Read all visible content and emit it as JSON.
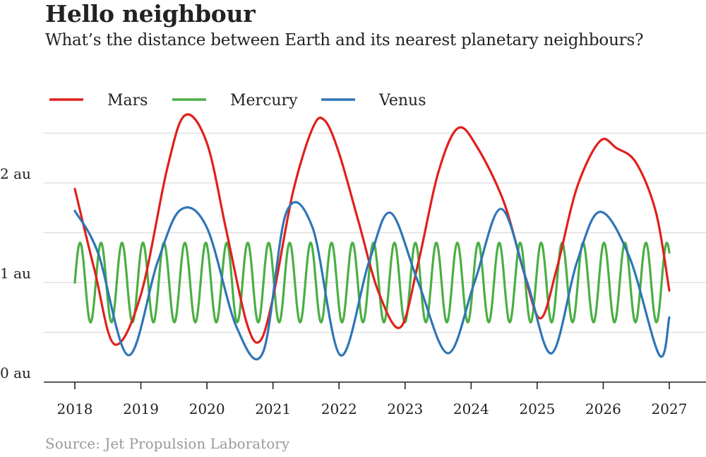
{
  "title": "Hello neighbour",
  "subtitle": "What’s the distance between Earth and its nearest planetary neighbours?",
  "source": "Source: Jet Propulsion Laboratory",
  "chart_data": {
    "type": "line",
    "title": "Hello neighbour",
    "subtitle": "What’s the distance between Earth and its nearest planetary neighbours?",
    "xlabel": "",
    "ylabel": "au",
    "xlim": [
      2017.6,
      2027.3
    ],
    "ylim": [
      0,
      2.6
    ],
    "grid": true,
    "legend_position": "top-left",
    "x_ticks": [
      2018,
      2019,
      2020,
      2021,
      2022,
      2023,
      2024,
      2025,
      2026,
      2027
    ],
    "x_tick_labels": [
      "2018",
      "2019",
      "2020",
      "2021",
      "2022",
      "2023",
      "2024",
      "2025",
      "2026",
      "2027"
    ],
    "y_ticks": [
      0,
      1,
      2
    ],
    "y_tick_labels": [
      "0  au",
      "1  au",
      "2  au"
    ],
    "y_gridlines": [
      0.5,
      1,
      1.5,
      2,
      2.5
    ],
    "series": [
      {
        "name": "Mars",
        "color": "#e0201d",
        "x": [
          2018.0,
          2018.3,
          2018.6,
          2019.0,
          2019.4,
          2019.67,
          2020.0,
          2020.3,
          2020.6,
          2020.8,
          2021.0,
          2021.3,
          2021.6,
          2021.78,
          2022.0,
          2022.3,
          2022.6,
          2022.93,
          2023.2,
          2023.5,
          2023.8,
          2024.1,
          2024.5,
          2024.8,
          2025.05,
          2025.3,
          2025.6,
          2025.95,
          2026.2,
          2026.5,
          2026.8,
          2027.0
        ],
        "y": [
          1.94,
          1.12,
          0.38,
          0.88,
          2.15,
          2.68,
          2.4,
          1.5,
          0.6,
          0.41,
          0.85,
          1.9,
          2.55,
          2.63,
          2.3,
          1.6,
          0.9,
          0.55,
          1.2,
          2.1,
          2.55,
          2.35,
          1.8,
          1.1,
          0.64,
          1.15,
          1.95,
          2.42,
          2.35,
          2.2,
          1.7,
          0.92
        ]
      },
      {
        "name": "Mercury",
        "color": "#4aaf44",
        "x_start": 2018.0,
        "x_end": 2027.0,
        "mean": 1.0,
        "amplitude": 0.4,
        "period_years": 0.3173,
        "note": "oscillating distance approx. 0.57–1.45 au, about 29 cycles"
      },
      {
        "name": "Venus",
        "color": "#2e75b6",
        "x": [
          2018.0,
          2018.35,
          2018.81,
          2019.25,
          2019.6,
          2020.0,
          2020.45,
          2020.85,
          2021.2,
          2021.6,
          2022.02,
          2022.45,
          2022.78,
          2023.2,
          2023.65,
          2024.05,
          2024.45,
          2024.85,
          2025.22,
          2025.6,
          2025.95,
          2026.4,
          2026.85,
          2027.0
        ],
        "y": [
          1.72,
          1.3,
          0.27,
          1.2,
          1.73,
          1.55,
          0.55,
          0.3,
          1.7,
          1.55,
          0.27,
          1.2,
          1.7,
          1.0,
          0.29,
          1.0,
          1.74,
          1.0,
          0.29,
          1.2,
          1.71,
          1.25,
          0.27,
          0.65
        ]
      }
    ]
  }
}
